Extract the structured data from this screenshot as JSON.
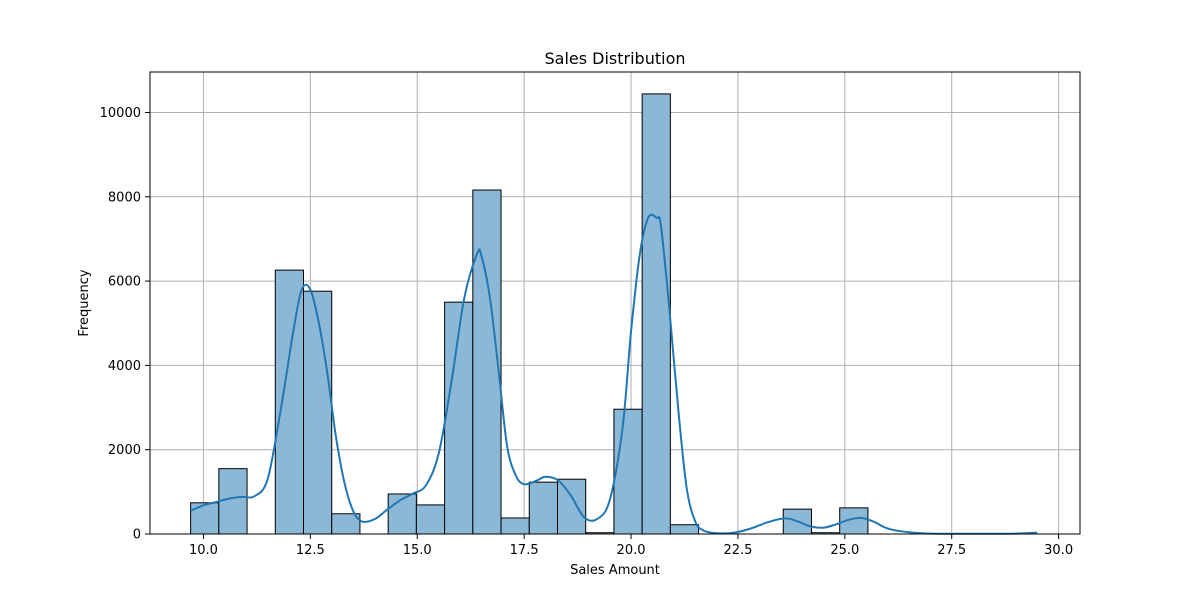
{
  "chart_data": {
    "type": "bar",
    "title": "Sales Distribution",
    "xlabel": "Sales Amount",
    "ylabel": "Frequency",
    "xlim": [
      8.75,
      30.5
    ],
    "ylim": [
      0,
      10960
    ],
    "grid": true,
    "bar_color": "#8cb8d8",
    "bar_edge_color": "#000000",
    "kde_color": "#2077b4",
    "grid_color": "#b0b0b0",
    "x_ticks": [
      10.0,
      12.5,
      15.0,
      17.5,
      20.0,
      22.5,
      25.0,
      27.5,
      30.0
    ],
    "x_tick_labels": [
      "10.0",
      "12.5",
      "15.0",
      "17.5",
      "20.0",
      "22.5",
      "25.0",
      "27.5",
      "30.0"
    ],
    "y_ticks": [
      0,
      2000,
      4000,
      6000,
      8000,
      10000
    ],
    "y_tick_labels": [
      "0",
      "2000",
      "4000",
      "6000",
      "8000",
      "10000"
    ],
    "bins": [
      {
        "x0": 9.7,
        "x1": 10.36,
        "value": 740
      },
      {
        "x0": 10.36,
        "x1": 11.02,
        "value": 1550
      },
      {
        "x0": 11.02,
        "x1": 11.68,
        "value": 0
      },
      {
        "x0": 11.68,
        "x1": 12.34,
        "value": 6260
      },
      {
        "x0": 12.34,
        "x1": 13.0,
        "value": 5760
      },
      {
        "x0": 13.0,
        "x1": 13.66,
        "value": 480
      },
      {
        "x0": 13.66,
        "x1": 14.32,
        "value": 0
      },
      {
        "x0": 14.32,
        "x1": 14.98,
        "value": 950
      },
      {
        "x0": 14.98,
        "x1": 15.64,
        "value": 690
      },
      {
        "x0": 15.64,
        "x1": 16.3,
        "value": 5500
      },
      {
        "x0": 16.3,
        "x1": 16.96,
        "value": 8160
      },
      {
        "x0": 16.96,
        "x1": 17.62,
        "value": 380
      },
      {
        "x0": 17.62,
        "x1": 18.28,
        "value": 1230
      },
      {
        "x0": 18.28,
        "x1": 18.94,
        "value": 1300
      },
      {
        "x0": 18.94,
        "x1": 19.6,
        "value": 30
      },
      {
        "x0": 19.6,
        "x1": 20.26,
        "value": 2960
      },
      {
        "x0": 20.26,
        "x1": 20.92,
        "value": 10440
      },
      {
        "x0": 20.92,
        "x1": 21.58,
        "value": 220
      },
      {
        "x0": 23.56,
        "x1": 24.22,
        "value": 590
      },
      {
        "x0": 24.22,
        "x1": 24.88,
        "value": 30
      },
      {
        "x0": 24.88,
        "x1": 25.54,
        "value": 620
      }
    ],
    "kde": {
      "x": [
        9.7,
        10.0,
        10.3,
        10.6,
        10.9,
        11.2,
        11.5,
        11.8,
        12.1,
        12.3,
        12.5,
        12.7,
        12.9,
        13.1,
        13.3,
        13.5,
        13.7,
        14.0,
        14.3,
        14.6,
        14.9,
        15.2,
        15.5,
        15.8,
        16.1,
        16.4,
        16.5,
        16.7,
        16.9,
        17.1,
        17.3,
        17.5,
        17.8,
        18.0,
        18.3,
        18.6,
        18.9,
        19.2,
        19.5,
        19.8,
        20.0,
        20.2,
        20.4,
        20.6,
        20.7,
        20.9,
        21.1,
        21.3,
        21.5,
        21.7,
        22.0,
        22.4,
        22.8,
        23.2,
        23.6,
        23.9,
        24.2,
        24.5,
        24.8,
        25.1,
        25.4,
        25.7,
        26.0,
        26.5,
        27.0,
        28.0,
        29.0,
        29.5
      ],
      "y": [
        550,
        680,
        760,
        840,
        880,
        900,
        1300,
        2900,
        4800,
        5800,
        5800,
        5000,
        3800,
        2300,
        1200,
        550,
        300,
        350,
        580,
        800,
        960,
        1150,
        1900,
        3600,
        5600,
        6650,
        6600,
        5600,
        3900,
        2100,
        1400,
        1180,
        1270,
        1360,
        1270,
        900,
        400,
        350,
        800,
        2500,
        4800,
        6600,
        7500,
        7500,
        7300,
        5300,
        3000,
        1100,
        300,
        80,
        20,
        30,
        130,
        280,
        370,
        300,
        180,
        150,
        230,
        340,
        380,
        280,
        130,
        40,
        10,
        5,
        10,
        30
      ]
    }
  }
}
